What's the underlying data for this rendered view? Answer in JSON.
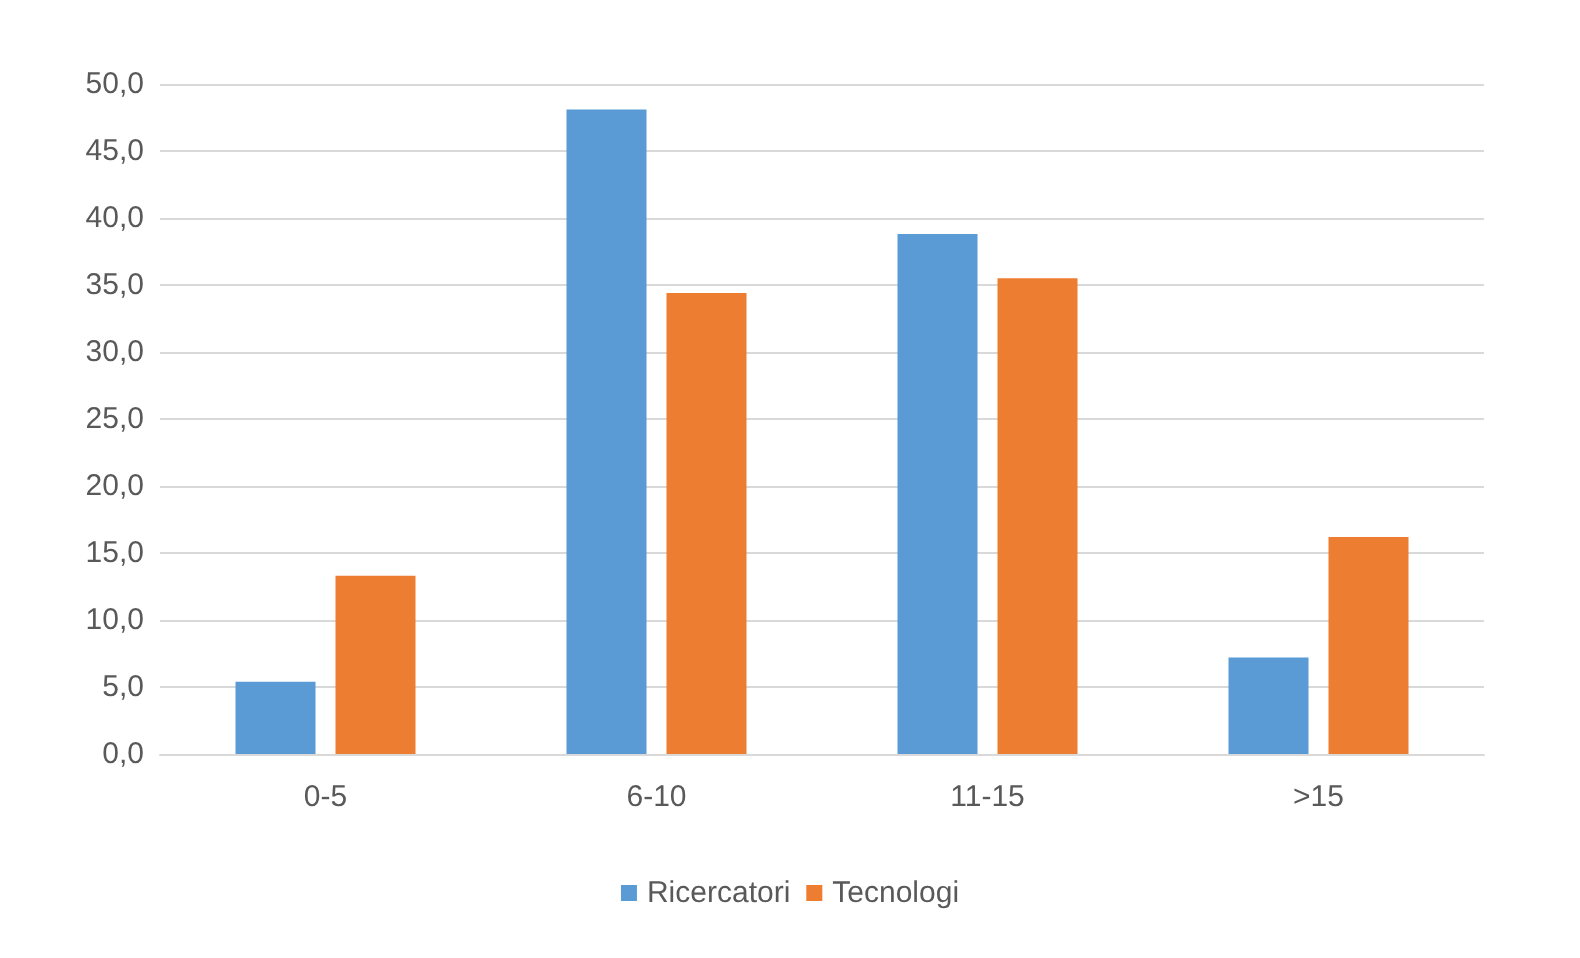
{
  "chart_data": {
    "type": "bar",
    "categories": [
      "0-5",
      "6-10",
      "11-15",
      ">15"
    ],
    "series": [
      {
        "name": "Ricercatori",
        "color": "#5b9bd5",
        "values": [
          5.4,
          48.1,
          38.8,
          7.2
        ]
      },
      {
        "name": "Tecnologi",
        "color": "#ed7d31",
        "values": [
          13.3,
          34.4,
          35.5,
          16.2
        ]
      }
    ],
    "ylim": [
      0,
      50
    ],
    "yticks": [
      {
        "value": 0,
        "label": "0,0"
      },
      {
        "value": 5,
        "label": "5,0"
      },
      {
        "value": 10,
        "label": "10,0"
      },
      {
        "value": 15,
        "label": "15,0"
      },
      {
        "value": 20,
        "label": "20,0"
      },
      {
        "value": 25,
        "label": "25,0"
      },
      {
        "value": 30,
        "label": "30,0"
      },
      {
        "value": 35,
        "label": "35,0"
      },
      {
        "value": 40,
        "label": "40,0"
      },
      {
        "value": 45,
        "label": "45,0"
      },
      {
        "value": 50,
        "label": "50,0"
      }
    ],
    "grid": "y",
    "legend": "bottom"
  }
}
